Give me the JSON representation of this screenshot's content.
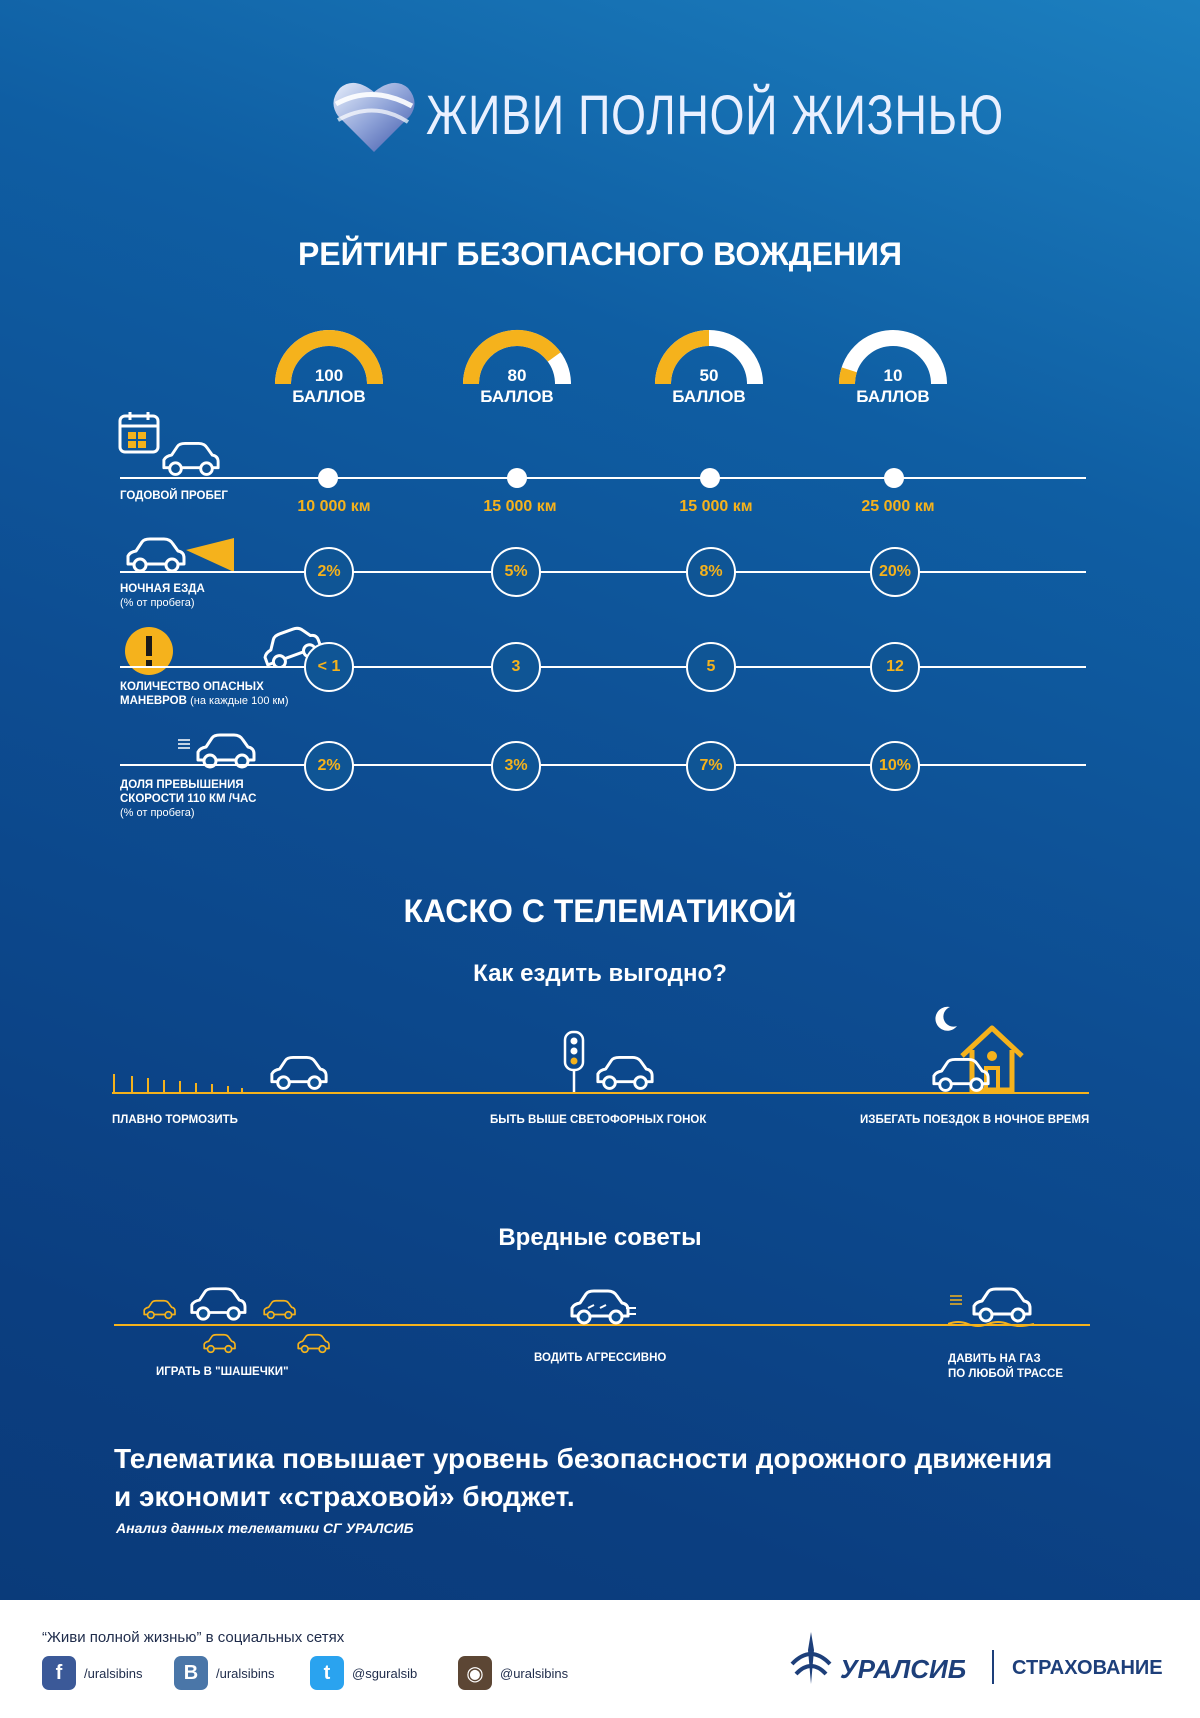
{
  "brand": {
    "slogan": "ЖИВИ ПОЛНОЙ ЖИЗНЬЮ"
  },
  "rating": {
    "title": "РЕЙТИНГ БЕЗОПАСНОГО ВОЖДЕНИЯ",
    "scores": [
      {
        "value": "100",
        "unit": "БАЛЛОВ",
        "fill": 1.0
      },
      {
        "value": "80",
        "unit": "БАЛЛОВ",
        "fill": 0.8
      },
      {
        "value": "50",
        "unit": "БАЛЛОВ",
        "fill": 0.5
      },
      {
        "value": "10",
        "unit": "БАЛЛОВ",
        "fill": 0.1
      }
    ],
    "rows": [
      {
        "label": "ГОДОВОЙ ПРОБЕГ",
        "values": [
          "10 000 км",
          "15 000 км",
          "15 000 км",
          "25 000 км"
        ]
      },
      {
        "label": "НОЧНАЯ ЕЗДА",
        "sub": "(% от пробега)",
        "values": [
          "2%",
          "5%",
          "8%",
          "20%"
        ]
      },
      {
        "label": "КОЛИЧЕСТВО ОПАСНЫХ",
        "label2": "МАНЕВРОВ",
        "sub": "(на каждые 100 км)",
        "values": [
          "< 1",
          "3",
          "5",
          "12"
        ]
      },
      {
        "label": "ДОЛЯ ПРЕВЫШЕНИЯ",
        "label2": "СКОРОСТИ 110 КМ /ЧАС",
        "sub": "(% от пробега)",
        "values": [
          "2%",
          "3%",
          "7%",
          "10%"
        ]
      }
    ]
  },
  "kasko": {
    "title": "КАСКО С ТЕЛЕМАТИКОЙ",
    "subtitle": "Как ездить выгодно?",
    "tips": [
      "ПЛАВНО ТОРМОЗИТЬ",
      "БЫТЬ ВЫШЕ СВЕТОФОРНЫХ ГОНОК",
      "ИЗБЕГАТЬ ПОЕЗДОК В НОЧНОЕ ВРЕМЯ"
    ]
  },
  "bad": {
    "title": "Вредные советы",
    "tips": [
      "ИГРАТЬ В \"ШАШЕЧКИ\"",
      "ВОДИТЬ АГРЕССИВНО",
      "ДАВИТЬ НА ГАЗ",
      "ПО ЛЮБОЙ ТРАССЕ"
    ]
  },
  "conclusion": {
    "line1": "Телематика повышает уровень безопасности дорожного движения",
    "line2": "и экономит «страховой» бюджет.",
    "source": "Анализ данных телематики СГ УРАЛСИБ"
  },
  "footer": {
    "social_title": "“Живи полной жизнью” в социальных сетях",
    "social": [
      {
        "icon": "facebook-icon",
        "glyph": "f",
        "handle": "/uralsibins",
        "color": "#3b5998"
      },
      {
        "icon": "vk-icon",
        "glyph": "B",
        "handle": "/uralsibins",
        "color": "#4a76a8"
      },
      {
        "icon": "twitter-icon",
        "glyph": "t",
        "handle": "@sguralsib",
        "color": "#2aa3ef"
      },
      {
        "icon": "instagram-icon",
        "glyph": "◉",
        "handle": "@uralsibins",
        "color": "#5c4634"
      }
    ],
    "company": "УРАЛСИБ",
    "division": "СТРАХОВАНИЕ"
  },
  "colors": {
    "accent": "#f5b21c",
    "background": "#0d4d92"
  }
}
